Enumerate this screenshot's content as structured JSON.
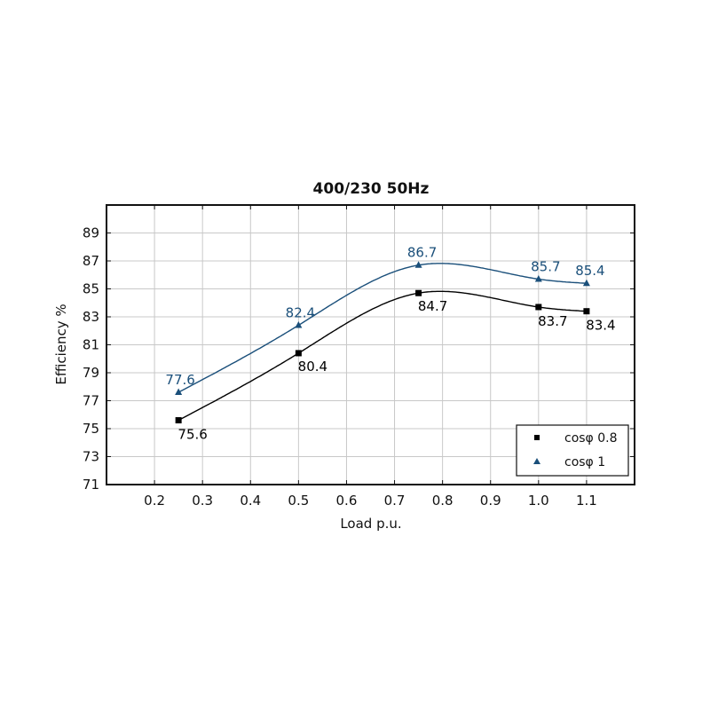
{
  "chart_data": {
    "type": "line",
    "title": "400/230 50Hz",
    "xlabel": "Load p.u.",
    "ylabel": "Efficiency %",
    "xlim": [
      0.1,
      1.2
    ],
    "ylim": [
      71,
      91
    ],
    "x_ticks": [
      "0.2",
      "0.3",
      "0.4",
      "0.5",
      "0.6",
      "0.7",
      "0.8",
      "0.9",
      "1.0",
      "1.1"
    ],
    "y_ticks": [
      "71",
      "73",
      "75",
      "77",
      "79",
      "81",
      "83",
      "85",
      "87",
      "89"
    ],
    "grid": true,
    "legend_position": "bottom-right",
    "series": [
      {
        "name": "cosφ 0.8",
        "marker": "square",
        "color": "#000000",
        "x": [
          0.25,
          0.5,
          0.75,
          1.0,
          1.1
        ],
        "y": [
          75.6,
          80.4,
          84.7,
          83.7,
          83.4
        ],
        "labels": [
          "75.6",
          "80.4",
          "84.7",
          "83.7",
          "83.4"
        ]
      },
      {
        "name": "cosφ 1",
        "marker": "triangle",
        "color": "#1a4f7a",
        "x": [
          0.25,
          0.5,
          0.75,
          1.0,
          1.1
        ],
        "y": [
          77.6,
          82.4,
          86.7,
          85.7,
          85.4
        ],
        "labels": [
          "77.6",
          "82.4",
          "86.7",
          "85.7",
          "85.4"
        ]
      }
    ]
  }
}
